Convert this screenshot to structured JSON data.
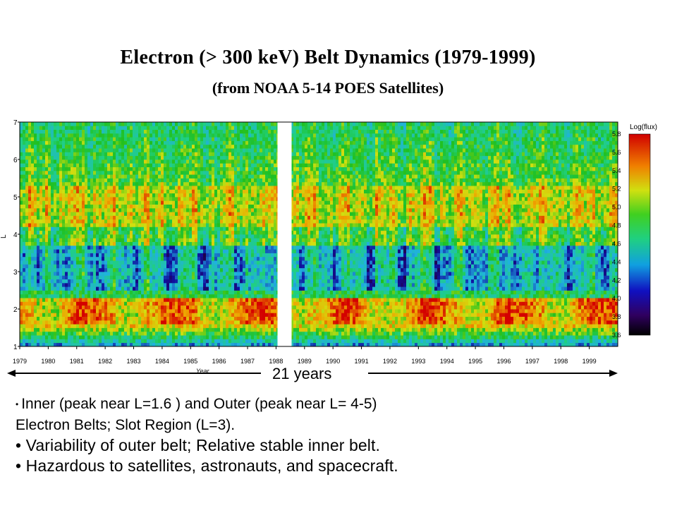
{
  "slide": {
    "title": "Electron (> 300 keV) Belt Dynamics (1979-1999)",
    "subtitle": "(from NOAA 5-14 POES Satellites)",
    "bullets": [
      "Inner (peak near L=1.6 ) and Outer (peak near L= 4-5)",
      "Electron Belts; Slot Region (L=3).",
      "• Variability of outer belt; Relative stable inner belt.",
      "• Hazardous to satellites, astronauts, and spacecraft."
    ]
  },
  "chart_data": {
    "type": "heatmap",
    "xlabel": "Year",
    "ylabel": "L",
    "x_ticks": [
      "1979",
      "1980",
      "1981",
      "1982",
      "1983",
      "1984",
      "1985",
      "1986",
      "1987",
      "1988",
      "1989",
      "1990",
      "1991",
      "1992",
      "1993",
      "1994",
      "1995",
      "1996",
      "1997",
      "1998",
      "1999"
    ],
    "y_ticks": [
      "1",
      "2",
      "3",
      "4",
      "5",
      "6",
      "7"
    ],
    "xlim": [
      1979,
      2000
    ],
    "ylim": [
      1,
      7
    ],
    "colorbar": {
      "label": "Log(flux)",
      "ticks": [
        "5.8",
        "5.6",
        "5.4",
        "5.2",
        "5.0",
        "4.8",
        "4.6",
        "4.4",
        "4.2",
        "4.0",
        "3.8",
        "3.6"
      ],
      "range": [
        3.6,
        5.8
      ]
    },
    "annotation": "21 years",
    "data_gap_year": 1988.2,
    "colors": {
      "high": "#d40000",
      "mid_high": "#f0a000",
      "mid": "#20c020",
      "mid_low": "#20b0e0",
      "low": "#1010a0",
      "min": "#000000"
    }
  }
}
